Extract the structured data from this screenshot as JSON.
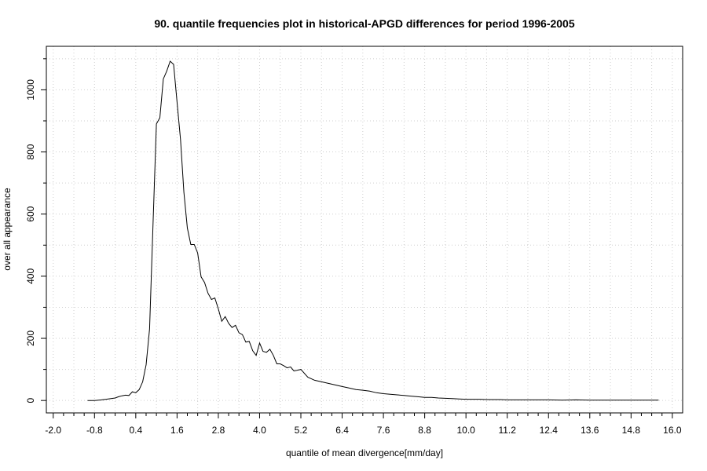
{
  "chart_data": {
    "type": "line",
    "title": "90. quantile frequencies plot in historical-APGD differences for period 1996-2005",
    "xlabel": "quantile of mean divergence[mm/day]",
    "ylabel": "over all appearance",
    "xlim": [
      -2.2,
      16.3
    ],
    "ylim": [
      -40,
      1140
    ],
    "grid": true,
    "x_ticks": [
      -2.0,
      -0.8,
      0.4,
      1.6,
      2.8,
      4.0,
      5.2,
      6.4,
      7.6,
      8.8,
      10.0,
      11.2,
      12.4,
      13.6,
      14.8,
      16.0
    ],
    "x_tick_labels": [
      "-2.0",
      "-0.8",
      "0.4",
      "1.6",
      "2.8",
      "4.0",
      "5.2",
      "6.4",
      "7.6",
      "8.8",
      "10.0",
      "11.2",
      "12.4",
      "13.6",
      "14.8",
      "16.0"
    ],
    "y_ticks": [
      0,
      200,
      400,
      600,
      800,
      1000
    ],
    "y_tick_labels": [
      "0",
      "200",
      "400",
      "600",
      "800",
      "1000"
    ],
    "series": [
      {
        "x": [
          -1.0,
          -0.8,
          -0.6,
          -0.4,
          -0.2,
          -0.1,
          0.0,
          0.1,
          0.2,
          0.3,
          0.4,
          0.5,
          0.6,
          0.7,
          0.8,
          0.9,
          1.0,
          1.1,
          1.2,
          1.3,
          1.4,
          1.5,
          1.6,
          1.7,
          1.8,
          1.9,
          2.0,
          2.1,
          2.2,
          2.3,
          2.4,
          2.5,
          2.6,
          2.7,
          2.8,
          2.9,
          3.0,
          3.1,
          3.2,
          3.3,
          3.4,
          3.5,
          3.6,
          3.7,
          3.8,
          3.9,
          4.0,
          4.1,
          4.2,
          4.3,
          4.4,
          4.5,
          4.6,
          4.7,
          4.8,
          4.9,
          5.0,
          5.2,
          5.4,
          5.6,
          5.8,
          6.0,
          6.2,
          6.4,
          6.6,
          6.8,
          7.0,
          7.2,
          7.4,
          7.6,
          7.8,
          8.0,
          8.2,
          8.4,
          8.6,
          8.8,
          9.0,
          9.2,
          9.4,
          9.6,
          9.8,
          10.0,
          10.2,
          10.4,
          10.6,
          10.8,
          11.0,
          11.2,
          11.6,
          12.0,
          12.4,
          12.8,
          13.2,
          13.6,
          14.0,
          14.4,
          14.8,
          15.2,
          15.6
        ],
        "y": [
          0,
          0,
          2,
          5,
          8,
          12,
          15,
          17,
          16,
          28,
          25,
          35,
          60,
          115,
          230,
          560,
          890,
          910,
          1035,
          1060,
          1092,
          1082,
          960,
          840,
          670,
          555,
          502,
          502,
          475,
          398,
          380,
          345,
          325,
          330,
          295,
          255,
          270,
          248,
          235,
          242,
          218,
          212,
          188,
          190,
          160,
          145,
          185,
          158,
          155,
          165,
          145,
          118,
          118,
          112,
          105,
          108,
          95,
          100,
          75,
          65,
          60,
          55,
          50,
          45,
          40,
          35,
          33,
          30,
          25,
          22,
          20,
          18,
          16,
          14,
          12,
          10,
          10,
          8,
          7,
          6,
          5,
          4,
          4,
          4,
          3,
          3,
          3,
          2,
          2,
          2,
          2,
          1,
          2,
          1,
          1,
          1,
          1,
          1,
          1
        ]
      }
    ]
  }
}
